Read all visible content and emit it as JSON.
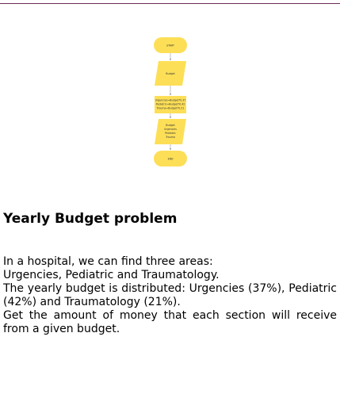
{
  "flowchart": {
    "start_label": "START",
    "input_label": "Budget",
    "process_lines": [
      "Urgencies=Budget*0.37",
      "Pediatric=Budget*0.42",
      "Trauma=Budget*0.21"
    ],
    "output_lines": [
      "Budget",
      "Urgencies",
      "Pediatric",
      "Trauma"
    ],
    "end_label": "END",
    "fill_color": "#fddf57",
    "arrow_color": "#999999"
  },
  "problem": {
    "title": "Yearly Budget problem",
    "paragraphs": [
      "In a hospital, we can find three areas:",
      "Urgencies, Pediatric and Traumatology.",
      "The yearly budget is distributed: Urgencies (37%), Pediatric (42%) and Traumatology (21%).",
      "Get the amount of money that each section will receive from a given budget."
    ]
  }
}
